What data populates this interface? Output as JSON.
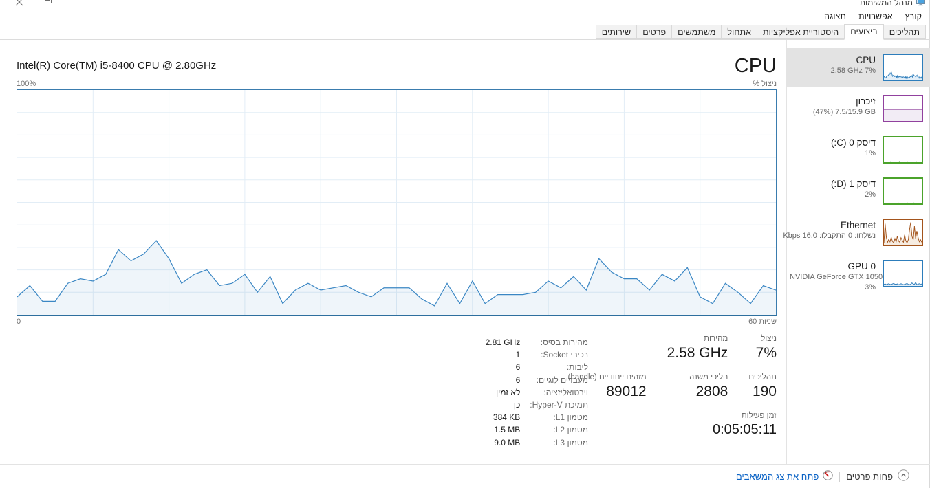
{
  "window": {
    "title": "מנהל המשימות"
  },
  "menu": {
    "items": [
      {
        "label": "קובץ"
      },
      {
        "label": "אפשרויות"
      },
      {
        "label": "תצוגה"
      }
    ]
  },
  "tabs": [
    {
      "label": "תהליכים",
      "active": false
    },
    {
      "label": "ביצועים",
      "active": true
    },
    {
      "label": "היסטוריית אפליקציות",
      "active": false
    },
    {
      "label": "אתחול",
      "active": false
    },
    {
      "label": "משתמשים",
      "active": false
    },
    {
      "label": "פרטים",
      "active": false
    },
    {
      "label": "שירותים",
      "active": false
    }
  ],
  "sidebar": {
    "items": [
      {
        "id": "cpu",
        "title": "CPU",
        "subtitle": "2.58 GHz 7%",
        "color": "#2d7dbb",
        "fill": "#e3eff9",
        "selected": true,
        "spark": [
          10,
          14,
          8,
          7,
          13,
          15,
          16,
          18,
          28,
          22,
          25,
          32,
          24,
          14,
          17,
          19,
          13,
          14,
          17,
          10,
          16,
          6,
          11,
          13,
          11,
          12,
          12,
          10,
          8,
          12,
          11,
          7,
          5,
          13,
          6,
          14,
          6,
          9,
          9,
          10,
          14,
          12,
          16,
          11,
          24,
          18,
          16,
          15,
          11,
          17,
          14,
          20,
          8,
          6,
          13,
          10,
          6,
          12
        ]
      },
      {
        "id": "memory",
        "title": "זיכרון",
        "subtitle": "(47%) 7.5/15.9 GB",
        "color": "#91419e",
        "fill": "#f2ecf5",
        "spark": [
          47,
          47,
          47,
          47,
          47,
          47,
          47,
          47,
          47,
          47
        ]
      },
      {
        "id": "disk0",
        "title": "דיסק 0 (C:)",
        "subtitle": "1%",
        "color": "#4ba32b",
        "fill": "#eef7ea",
        "spark": [
          0,
          0,
          1,
          0,
          0,
          2,
          0,
          0,
          0,
          1,
          0,
          0,
          3,
          0,
          0,
          1,
          0,
          0,
          2,
          0,
          0,
          0,
          1,
          0,
          0,
          2,
          0,
          1,
          0,
          0
        ]
      },
      {
        "id": "disk1",
        "title": "דיסק 1 (D:)",
        "subtitle": "2%",
        "color": "#4ba32b",
        "fill": "#eef7ea",
        "spark": [
          0,
          1,
          0,
          0,
          2,
          0,
          0,
          0,
          1,
          0,
          0,
          2,
          0,
          0,
          1,
          0,
          0,
          0,
          2,
          0,
          1,
          0,
          0,
          2,
          0,
          0,
          1,
          0,
          0,
          0
        ]
      },
      {
        "id": "ethernet",
        "title": "Ethernet",
        "subtitle": "נשלחו: 0 התקבלו: 16.0 Kbps",
        "color": "#a3541c",
        "fill": "#f6ece1",
        "spark": [
          8,
          85,
          30,
          10,
          22,
          12,
          30,
          14,
          8,
          25,
          12,
          35,
          15,
          10,
          28,
          18,
          10,
          40,
          15,
          8,
          20,
          60,
          90,
          35,
          20,
          75,
          25,
          55,
          30,
          12,
          20,
          10
        ]
      },
      {
        "id": "gpu",
        "title": "GPU 0",
        "subtitle": "NVIDIA GeForce GTX 1050",
        "subtitle2": "3%",
        "color": "#2d7dbb",
        "fill": "#e3eff9",
        "spark": [
          6,
          8,
          5,
          7,
          9,
          6,
          5,
          8,
          10,
          7,
          6,
          8,
          5,
          6,
          9,
          7,
          5,
          6,
          8,
          10,
          6,
          5,
          7,
          12,
          8,
          6,
          14,
          5,
          7,
          9,
          6,
          8
        ]
      }
    ]
  },
  "main": {
    "cpu_name": "Intel(R) Core(TM) i5-8400 CPU @ 2.80GHz",
    "title": "CPU",
    "y_max_label": "100%",
    "y_axis_caption": "ניצול %",
    "x_left_label": "0",
    "x_right_label": "60 שניות",
    "stats": {
      "utilization": {
        "label": "ניצול",
        "value": "7%"
      },
      "speed": {
        "label": "מהירות",
        "value": "2.58 GHz"
      },
      "processes": {
        "label": "תהליכים",
        "value": "190"
      },
      "threads": {
        "label": "הליכי משנה",
        "value": "2808"
      },
      "handles": {
        "label": "מזהים ייחודיים (handle)",
        "value": "89012"
      },
      "uptime": {
        "label": "זמן פעילות",
        "value": "0:05:05:11"
      }
    },
    "details": [
      {
        "label": "מהירות בסיס:",
        "value": "2.81 GHz"
      },
      {
        "label": "רכיבי Socket:",
        "value": "1"
      },
      {
        "label": "ליבות:",
        "value": "6"
      },
      {
        "label": "מעבדים לוגיים:",
        "value": "6"
      },
      {
        "label": "וירטואליזציה:",
        "value": "לא זמין"
      },
      {
        "label": "תמיכת Hyper-V:",
        "value": "כן"
      },
      {
        "label": "מטמון L1:",
        "value": "384 KB"
      },
      {
        "label": "מטמון L2:",
        "value": "1.5 MB"
      },
      {
        "label": "מטמון L3:",
        "value": "9.0 MB"
      }
    ]
  },
  "footer": {
    "fewer_details": "פחות פרטים",
    "open_resource_monitor": "פתח את צג המשאבים"
  },
  "colors": {
    "cpu_accent": "#2d7dbb",
    "memory_accent": "#91419e",
    "disk_accent": "#4ba32b",
    "ethernet_accent": "#a3541c",
    "link_blue": "#0b63c5",
    "selected_bg": "#e3e3e3"
  },
  "chart_data": {
    "type": "area",
    "title": "CPU ניצול %",
    "ylabel": "ניצול %",
    "ylim": [
      0,
      100
    ],
    "x_axis": {
      "left_label": "0",
      "right_label": "60 שניות"
    },
    "grid": true,
    "series_name": "CPU utilization %",
    "values": [
      8,
      13,
      6,
      6,
      14,
      16,
      15,
      18,
      29,
      24,
      27,
      33,
      25,
      14,
      18,
      20,
      13,
      14,
      18,
      10,
      17,
      5,
      11,
      14,
      11,
      12,
      13,
      10,
      8,
      12,
      12,
      12,
      7,
      4,
      14,
      5,
      15,
      5,
      9,
      9,
      9,
      10,
      15,
      12,
      17,
      11,
      25,
      19,
      16,
      16,
      11,
      18,
      15,
      21,
      8,
      5,
      14,
      10,
      5,
      13,
      11
    ]
  }
}
